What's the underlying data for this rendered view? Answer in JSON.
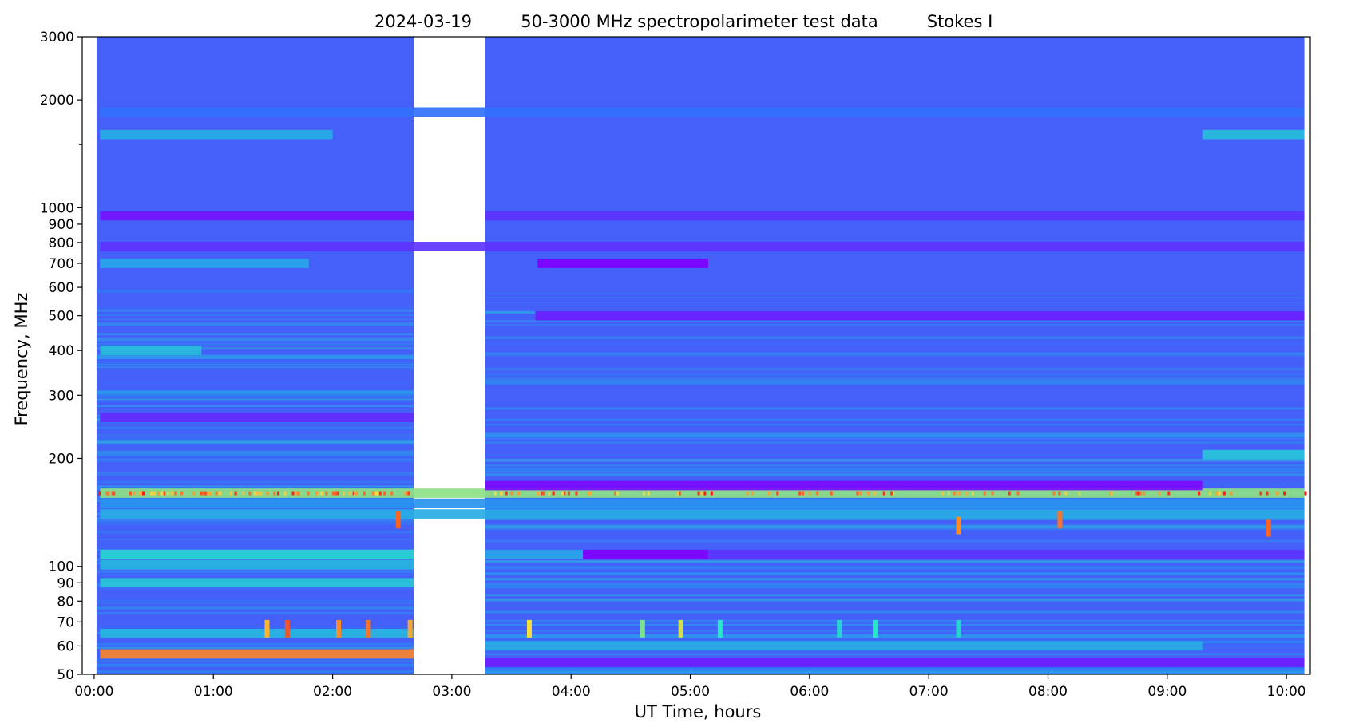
{
  "chart_data": {
    "type": "heatmap",
    "title_parts": [
      "2024-03-19",
      "50-3000 MHz spectropolarimeter test data",
      "Stokes I"
    ],
    "xlabel": "UT Time, hours",
    "ylabel": "Frequency, MHz",
    "x_unit": "hours UT",
    "xlim": [
      -0.1,
      10.2
    ],
    "ylim": [
      50,
      3000
    ],
    "y_scale": "log",
    "grid": false,
    "legend": "none",
    "colormap": "rainbow",
    "x_ticks": [
      {
        "value": 0,
        "label": "00:00"
      },
      {
        "value": 1,
        "label": "01:00"
      },
      {
        "value": 2,
        "label": "02:00"
      },
      {
        "value": 3,
        "label": "03:00"
      },
      {
        "value": 4,
        "label": "04:00"
      },
      {
        "value": 5,
        "label": "05:00"
      },
      {
        "value": 6,
        "label": "06:00"
      },
      {
        "value": 7,
        "label": "07:00"
      },
      {
        "value": 8,
        "label": "08:00"
      },
      {
        "value": 9,
        "label": "09:00"
      },
      {
        "value": 10,
        "label": "10:00"
      }
    ],
    "y_ticks": [
      {
        "value": 50,
        "label": "50"
      },
      {
        "value": 60,
        "label": "60"
      },
      {
        "value": 70,
        "label": "70"
      },
      {
        "value": 80,
        "label": "80"
      },
      {
        "value": 90,
        "label": "90"
      },
      {
        "value": 100,
        "label": "100"
      },
      {
        "value": 200,
        "label": "200"
      },
      {
        "value": 300,
        "label": "300"
      },
      {
        "value": 400,
        "label": "400"
      },
      {
        "value": 500,
        "label": "500"
      },
      {
        "value": 600,
        "label": "600"
      },
      {
        "value": 700,
        "label": "700"
      },
      {
        "value": 800,
        "label": "800"
      },
      {
        "value": 900,
        "label": "900"
      },
      {
        "value": 1000,
        "label": "1000"
      },
      {
        "value": 2000,
        "label": "2000"
      },
      {
        "value": 3000,
        "label": "3000"
      }
    ],
    "y_minor_ticks": [
      1500
    ],
    "data_segments": [
      {
        "start": 0.02,
        "end": 2.68
      },
      {
        "start": 3.28,
        "end": 10.15
      }
    ],
    "background_level": 0.16,
    "colors": {
      "background": "#4560f8",
      "deep": "#5d2cf7",
      "cyan": "#2cc6e6",
      "yellow": "#e8e858",
      "red": "#e82020"
    },
    "spectral_features": [
      {
        "freq": 57,
        "t_start": 0.05,
        "t_end": 2.68,
        "level": 0.86,
        "kind": "band",
        "label_hint": "strong continuous emission 0-2.7 h"
      },
      {
        "freq": 60,
        "t_start": 3.28,
        "t_end": 9.3,
        "level": 0.36,
        "kind": "band"
      },
      {
        "freq": 54,
        "t_start": 3.28,
        "t_end": 10.15,
        "level": 0.05,
        "kind": "band"
      },
      {
        "freq": 65,
        "t_start": 0.05,
        "t_end": 2.68,
        "level": 0.38,
        "kind": "band"
      },
      {
        "freq": 90,
        "t_start": 0.05,
        "t_end": 2.68,
        "level": 0.42,
        "kind": "band"
      },
      {
        "freq": 101,
        "t_start": 0.05,
        "t_end": 2.68,
        "level": 0.38,
        "kind": "band"
      },
      {
        "freq": 108,
        "t_start": 0.05,
        "t_end": 2.68,
        "level": 0.46,
        "kind": "band"
      },
      {
        "freq": 108,
        "t_start": 3.28,
        "t_end": 4.1,
        "level": 0.34,
        "kind": "band"
      },
      {
        "freq": 108,
        "t_start": 4.1,
        "t_end": 5.15,
        "level": 0.0,
        "kind": "band"
      },
      {
        "freq": 108,
        "t_start": 5.15,
        "t_end": 10.15,
        "level": 0.1,
        "kind": "band"
      },
      {
        "freq": 140,
        "t_start": 0.05,
        "t_end": 10.15,
        "level": 0.36,
        "kind": "band"
      },
      {
        "freq": 150,
        "t_start": 0.05,
        "t_end": 10.15,
        "level": 0.3,
        "kind": "band"
      },
      {
        "freq": 160,
        "t_start": 0.05,
        "t_end": 10.15,
        "level": 0.62,
        "kind": "band"
      },
      {
        "freq": 168,
        "t_start": 3.28,
        "t_end": 9.3,
        "level": 0.02,
        "kind": "band"
      },
      {
        "freq": 205,
        "t_start": 9.3,
        "t_end": 10.15,
        "level": 0.42,
        "kind": "band"
      },
      {
        "freq": 260,
        "t_start": 0.05,
        "t_end": 2.68,
        "level": 0.08,
        "kind": "band"
      },
      {
        "freq": 400,
        "t_start": 0.05,
        "t_end": 0.9,
        "level": 0.4,
        "kind": "band"
      },
      {
        "freq": 500,
        "t_start": 3.7,
        "t_end": 10.15,
        "level": 0.06,
        "kind": "band"
      },
      {
        "freq": 700,
        "t_start": 0.05,
        "t_end": 1.8,
        "level": 0.34,
        "kind": "band"
      },
      {
        "freq": 700,
        "t_start": 3.72,
        "t_end": 5.15,
        "level": 0.0,
        "kind": "band"
      },
      {
        "freq": 780,
        "t_start": 0.05,
        "t_end": 10.15,
        "level": 0.1,
        "kind": "band"
      },
      {
        "freq": 950,
        "t_start": 0.05,
        "t_end": 2.68,
        "level": 0.04,
        "kind": "band"
      },
      {
        "freq": 950,
        "t_start": 3.28,
        "t_end": 10.15,
        "level": 0.1,
        "kind": "band"
      },
      {
        "freq": 1600,
        "t_start": 0.05,
        "t_end": 2.0,
        "level": 0.36,
        "kind": "band"
      },
      {
        "freq": 1600,
        "t_start": 9.3,
        "t_end": 10.15,
        "level": 0.4,
        "kind": "band"
      },
      {
        "freq": 1850,
        "t_start": 0.05,
        "t_end": 10.15,
        "level": 0.22,
        "kind": "band"
      }
    ],
    "bursts": [
      {
        "freq": 67,
        "t": 1.45,
        "level": 0.8
      },
      {
        "freq": 67,
        "t": 1.62,
        "level": 0.92
      },
      {
        "freq": 67,
        "t": 2.05,
        "level": 0.85
      },
      {
        "freq": 67,
        "t": 2.3,
        "level": 0.88
      },
      {
        "freq": 67,
        "t": 2.65,
        "level": 0.82
      },
      {
        "freq": 67,
        "t": 3.65,
        "level": 0.75
      },
      {
        "freq": 67,
        "t": 4.6,
        "level": 0.6
      },
      {
        "freq": 67,
        "t": 4.92,
        "level": 0.7
      },
      {
        "freq": 67,
        "t": 5.25,
        "level": 0.5
      },
      {
        "freq": 67,
        "t": 6.25,
        "level": 0.45
      },
      {
        "freq": 67,
        "t": 6.55,
        "level": 0.5
      },
      {
        "freq": 67,
        "t": 7.25,
        "level": 0.45
      },
      {
        "freq": 135,
        "t": 2.55,
        "level": 0.9
      },
      {
        "freq": 130,
        "t": 7.25,
        "level": 0.85
      },
      {
        "freq": 135,
        "t": 8.1,
        "level": 0.88
      },
      {
        "freq": 128,
        "t": 9.85,
        "level": 0.9
      }
    ]
  }
}
